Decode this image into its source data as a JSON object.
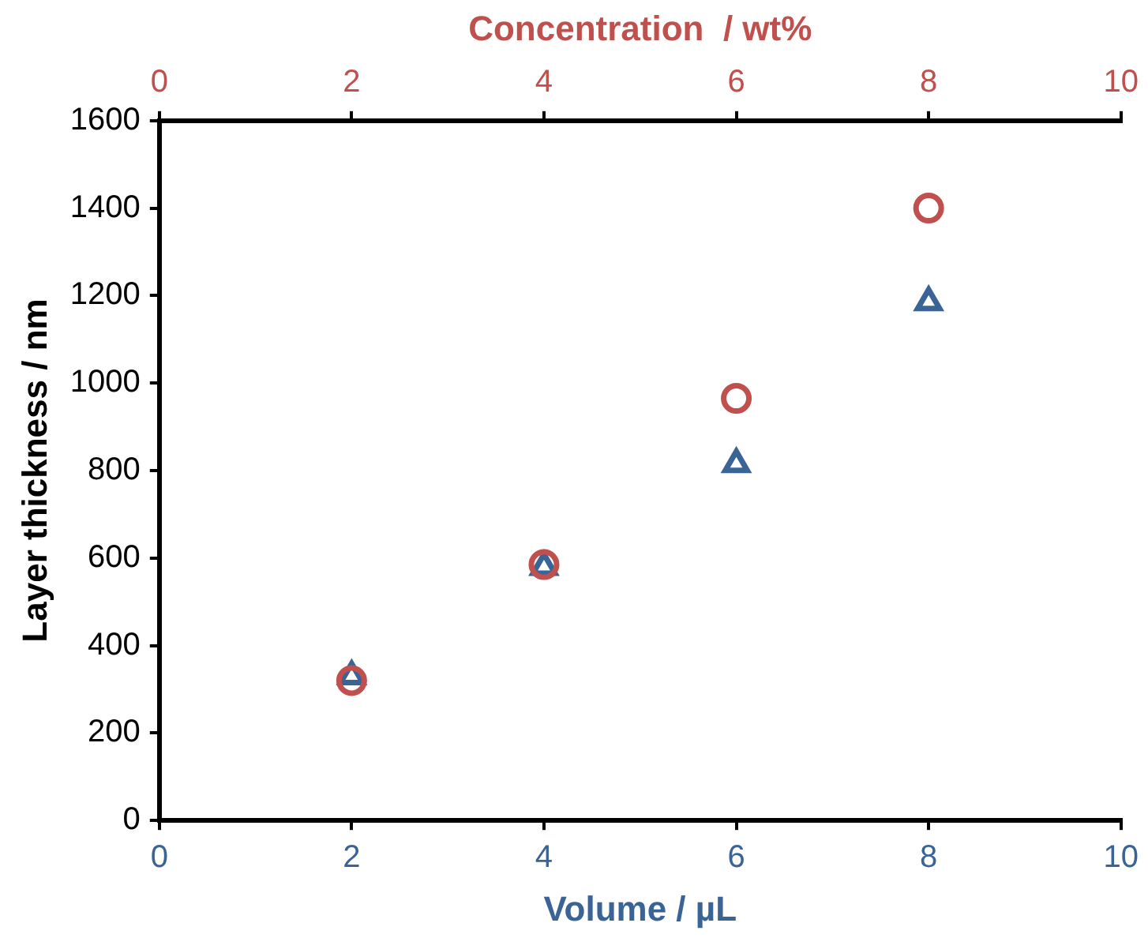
{
  "chart_data": {
    "type": "scatter",
    "xlabel": "Volume / µL",
    "x2label": "Concentration  / wt%",
    "ylabel": "Layer thickness / nm",
    "xlim": [
      0,
      10
    ],
    "xticks": [
      0,
      2,
      4,
      6,
      8,
      10
    ],
    "x2lim": [
      0,
      10
    ],
    "x2ticks": [
      0,
      2,
      4,
      6,
      8,
      10
    ],
    "ylim": [
      0,
      1600
    ],
    "yticks": [
      0,
      200,
      400,
      600,
      800,
      1000,
      1200,
      1400,
      1600
    ],
    "grid": false,
    "legend": false,
    "series": [
      {
        "color": "#c0504d",
        "marker": "circle",
        "axis": "x2",
        "x": [
          2,
          4,
          6,
          8
        ],
        "values": [
          320,
          585,
          965,
          1400
        ]
      },
      {
        "color": "#3a6496",
        "marker": "triangle",
        "x": [
          2,
          4,
          6,
          8
        ],
        "values": [
          330,
          580,
          815,
          1185
        ]
      }
    ]
  }
}
